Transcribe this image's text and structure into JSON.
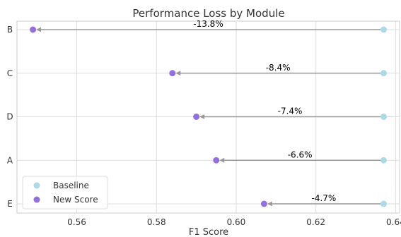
{
  "chart_data": {
    "type": "dumbbell",
    "title": "Performance Loss by Module",
    "xlabel": "F1 Score",
    "ylabel": "",
    "xlim": [
      0.545,
      0.641
    ],
    "xticks": [
      0.56,
      0.58,
      0.6,
      0.62,
      0.64
    ],
    "xtick_labels": [
      "0.56",
      "0.58",
      "0.60",
      "0.62",
      "0.64"
    ],
    "categories": [
      "B",
      "C",
      "D",
      "A",
      "E"
    ],
    "series": [
      {
        "name": "Baseline",
        "color": "#add8e6",
        "values": [
          0.637,
          0.637,
          0.637,
          0.637,
          0.637
        ]
      },
      {
        "name": "New Score",
        "color": "#9370db",
        "values": [
          0.549,
          0.584,
          0.59,
          0.595,
          0.607
        ]
      }
    ],
    "annotations": [
      "-13.8%",
      "-8.4%",
      "-7.4%",
      "-6.6%",
      "-4.7%"
    ],
    "arrow_color": "#999999",
    "grid": true,
    "legend_position": "lower-left"
  }
}
